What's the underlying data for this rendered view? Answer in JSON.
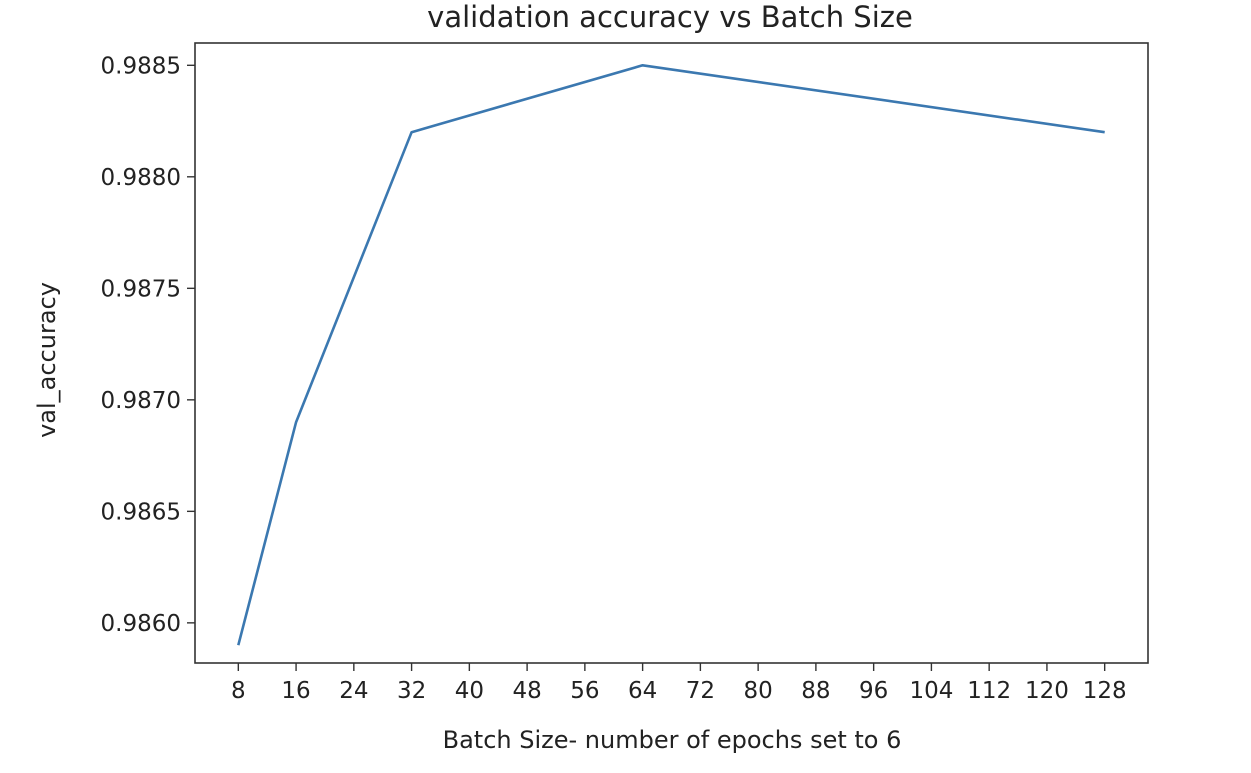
{
  "chart_data": {
    "type": "line",
    "title": "validation accuracy vs Batch Size",
    "xlabel": "Batch Size- number of epochs set to 6",
    "ylabel": "val_accuracy",
    "x": [
      8,
      16,
      32,
      64,
      128
    ],
    "series": [
      {
        "values": [
          0.9859,
          0.9869,
          0.9882,
          0.9885,
          0.9882
        ],
        "color": "#3b78b0"
      }
    ],
    "xticks": [
      8,
      16,
      24,
      32,
      40,
      48,
      56,
      64,
      72,
      80,
      88,
      96,
      104,
      112,
      120,
      128
    ],
    "yticks": [
      0.986,
      0.9865,
      0.987,
      0.9875,
      0.988,
      0.9885
    ],
    "ytick_labels": [
      "0.9860",
      "0.9865",
      "0.9870",
      "0.9875",
      "0.9880",
      "0.9885"
    ],
    "xlim": [
      2,
      134
    ],
    "ylim": [
      0.98582,
      0.9886
    ],
    "grid": false,
    "legend": "none"
  }
}
